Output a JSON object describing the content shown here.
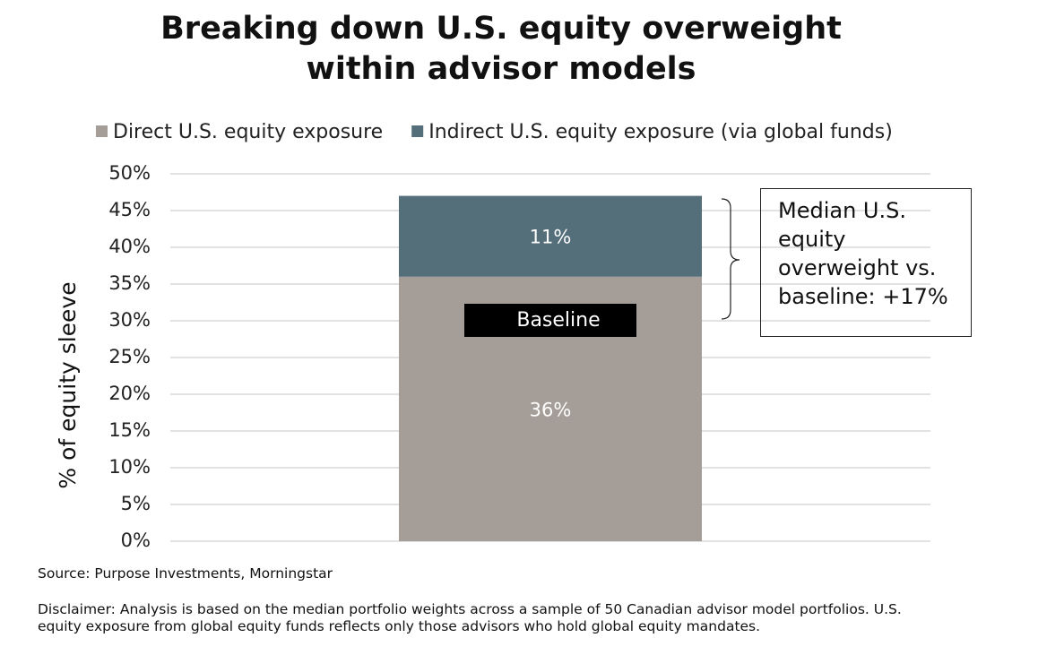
{
  "chart_data": {
    "type": "bar",
    "stacked": true,
    "title": "Breaking down U.S. equity overweight within advisor models",
    "ylabel": "% of equity sleeve",
    "categories": [
      null
    ],
    "series": [
      {
        "name": "Direct U.S. equity exposure",
        "color": "#a59e98",
        "values": [
          36
        ],
        "value_labels": [
          "36%"
        ]
      },
      {
        "name": "Indirect U.S. equity exposure (via global funds)",
        "color": "#546e7a",
        "values": [
          11
        ],
        "value_labels": [
          "11%"
        ]
      }
    ],
    "ylim": [
      0,
      50
    ],
    "yticks": [
      {
        "value": 0,
        "label": "0%"
      },
      {
        "value": 5,
        "label": "5%"
      },
      {
        "value": 10,
        "label": "10%"
      },
      {
        "value": 15,
        "label": "15%"
      },
      {
        "value": 20,
        "label": "20%"
      },
      {
        "value": 25,
        "label": "25%"
      },
      {
        "value": 30,
        "label": "30%"
      },
      {
        "value": 35,
        "label": "35%"
      },
      {
        "value": 40,
        "label": "40%"
      },
      {
        "value": 45,
        "label": "45%"
      },
      {
        "value": 50,
        "label": "50%"
      }
    ],
    "grid": true,
    "legend": "top",
    "baseline_label": "Baseline",
    "annotation": "Median U.S. equity overweight vs. baseline: +17%",
    "source": "Source: Purpose Investments, Morningstar",
    "disclaimer": "Disclaimer: Analysis is based on the median portfolio weights across a sample of 50 Canadian advisor model portfolios. U.S. equity exposure from global equity funds reflects only those advisors who hold global equity mandates."
  }
}
